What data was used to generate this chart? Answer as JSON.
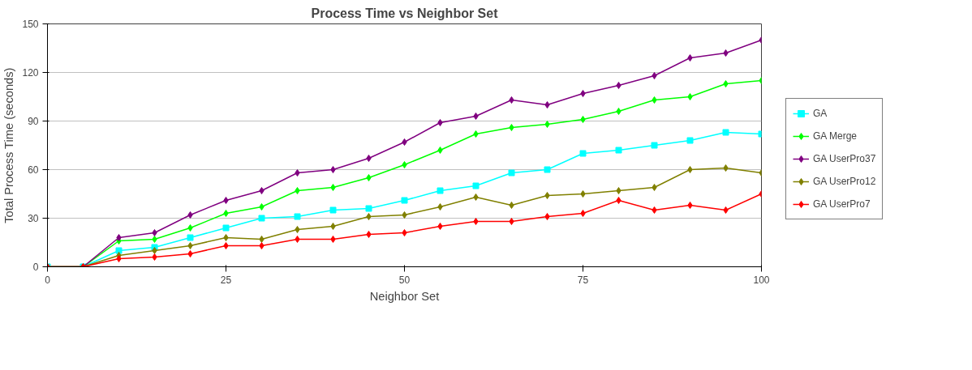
{
  "chart_data": {
    "type": "line",
    "title": "Process Time vs Neighbor Set",
    "xlabel": "Neighbor Set",
    "ylabel": "Total Process Time (seconds)",
    "x": [
      0,
      5,
      10,
      15,
      20,
      25,
      30,
      35,
      40,
      45,
      50,
      55,
      60,
      65,
      70,
      75,
      80,
      85,
      90,
      95,
      100
    ],
    "xlim": [
      0,
      100
    ],
    "xticks": [
      0,
      25,
      50,
      75,
      100
    ],
    "ylim": [
      0,
      150
    ],
    "yticks": [
      0,
      30,
      60,
      90,
      120,
      150
    ],
    "grid": "y",
    "legend": "right",
    "series": [
      {
        "name": "GA",
        "color": "#00ffff",
        "marker": "square",
        "values": [
          0,
          0,
          10,
          12,
          18,
          24,
          30,
          31,
          35,
          36,
          41,
          47,
          50,
          58,
          60,
          70,
          72,
          75,
          78,
          83,
          82
        ]
      },
      {
        "name": "GA Merge",
        "color": "#00ff00",
        "marker": "diamond",
        "values": [
          0,
          0,
          16,
          17,
          24,
          33,
          37,
          47,
          49,
          55,
          63,
          72,
          82,
          86,
          88,
          91,
          96,
          103,
          105,
          113,
          115
        ]
      },
      {
        "name": "GA UserPro37",
        "color": "#800080",
        "marker": "diamond",
        "values": [
          0,
          0,
          18,
          21,
          32,
          41,
          47,
          58,
          60,
          67,
          77,
          89,
          93,
          103,
          100,
          107,
          112,
          118,
          129,
          132,
          140
        ]
      },
      {
        "name": "GA UserPro12",
        "color": "#808000",
        "marker": "diamond",
        "values": [
          0,
          0,
          7,
          10,
          13,
          18,
          17,
          23,
          25,
          31,
          32,
          37,
          43,
          38,
          44,
          45,
          47,
          49,
          60,
          61,
          58
        ]
      },
      {
        "name": "GA UserPro7",
        "color": "#ff0000",
        "marker": "diamond",
        "values": [
          0,
          0,
          5,
          6,
          8,
          13,
          13,
          17,
          17,
          20,
          21,
          25,
          28,
          28,
          31,
          33,
          41,
          35,
          38,
          35,
          45
        ]
      }
    ]
  }
}
